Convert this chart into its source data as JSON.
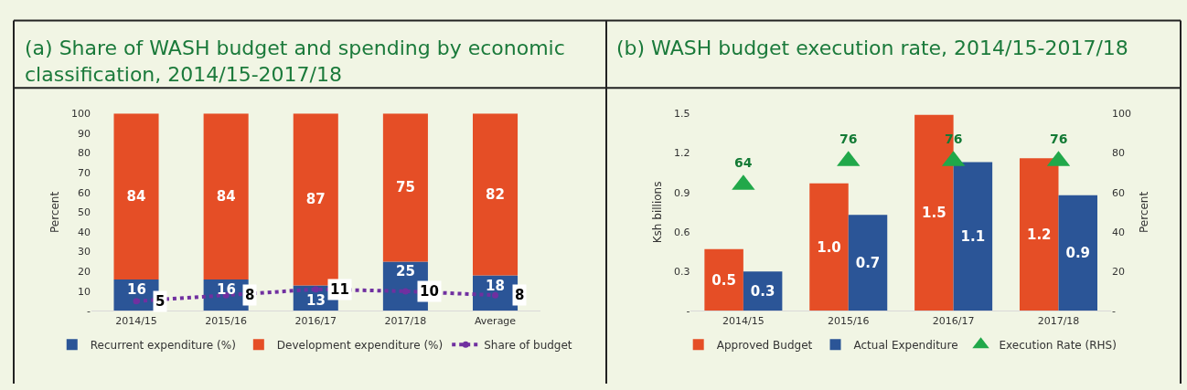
{
  "chart_data": [
    {
      "type": "bar",
      "title": "(a) Share of WASH budget and spending by economic classification, 2014/15-2017/18",
      "ylabel": "Percent",
      "categories": [
        "2014/15",
        "2015/16",
        "2016/17",
        "2017/18",
        "Average"
      ],
      "stacked": true,
      "data_labels": true,
      "legend": "bottom",
      "grid": false,
      "ylim": [
        0,
        100
      ],
      "yticks": [
        {
          "value": 0,
          "label": "-"
        },
        10,
        20,
        30,
        40,
        50,
        60,
        70,
        80,
        90,
        100
      ],
      "series": [
        {
          "name": "Recurrent expenditure (%)",
          "color": "#2b5597",
          "values": [
            16,
            16,
            13,
            25,
            18
          ]
        },
        {
          "name": "Development expenditure (%)",
          "color": "#e54e26",
          "values": [
            84,
            84,
            87,
            75,
            82
          ]
        },
        {
          "name": "Share of budget",
          "type": "line",
          "line_style": "dotted",
          "marker": "circle",
          "color": "#7030a0",
          "values": [
            5,
            8,
            11,
            10,
            8
          ]
        }
      ]
    },
    {
      "type": "bar",
      "title": "(b) WASH budget execution rate, 2014/15-2017/18",
      "ylabel": "Ksh billions",
      "y2label": "Percent",
      "categories": [
        "2014/15",
        "2015/16",
        "2016/17",
        "2017/18"
      ],
      "legend": "bottom",
      "grid": false,
      "ylim": [
        0,
        1.5
      ],
      "yticks": [
        {
          "value": 0,
          "label": "-"
        },
        0.3,
        0.6,
        0.9,
        1.2,
        1.5
      ],
      "y2lim": [
        0,
        100
      ],
      "y2ticks": [
        {
          "value": 0,
          "label": "-"
        },
        20,
        40,
        60,
        80,
        100
      ],
      "series": [
        {
          "name": "Approved Budget",
          "color": "#e54e26",
          "values": [
            0.47,
            0.97,
            1.49,
            1.16
          ],
          "value_labels": [
            "0.5",
            "1.0",
            "1.5",
            "1.2"
          ]
        },
        {
          "name": "Actual Expenditure",
          "color": "#2b5597",
          "values": [
            0.3,
            0.73,
            1.13,
            0.88
          ],
          "value_labels": [
            "0.3",
            "0.7",
            "1.1",
            "0.9"
          ]
        },
        {
          "name": "Execution Rate (RHS)",
          "type": "scatter",
          "axis": "y2",
          "marker": "triangle",
          "color": "#21a84a",
          "values": [
            64,
            76,
            76,
            76
          ],
          "value_labels": [
            "64",
            "76",
            "76",
            "76"
          ]
        }
      ]
    }
  ]
}
